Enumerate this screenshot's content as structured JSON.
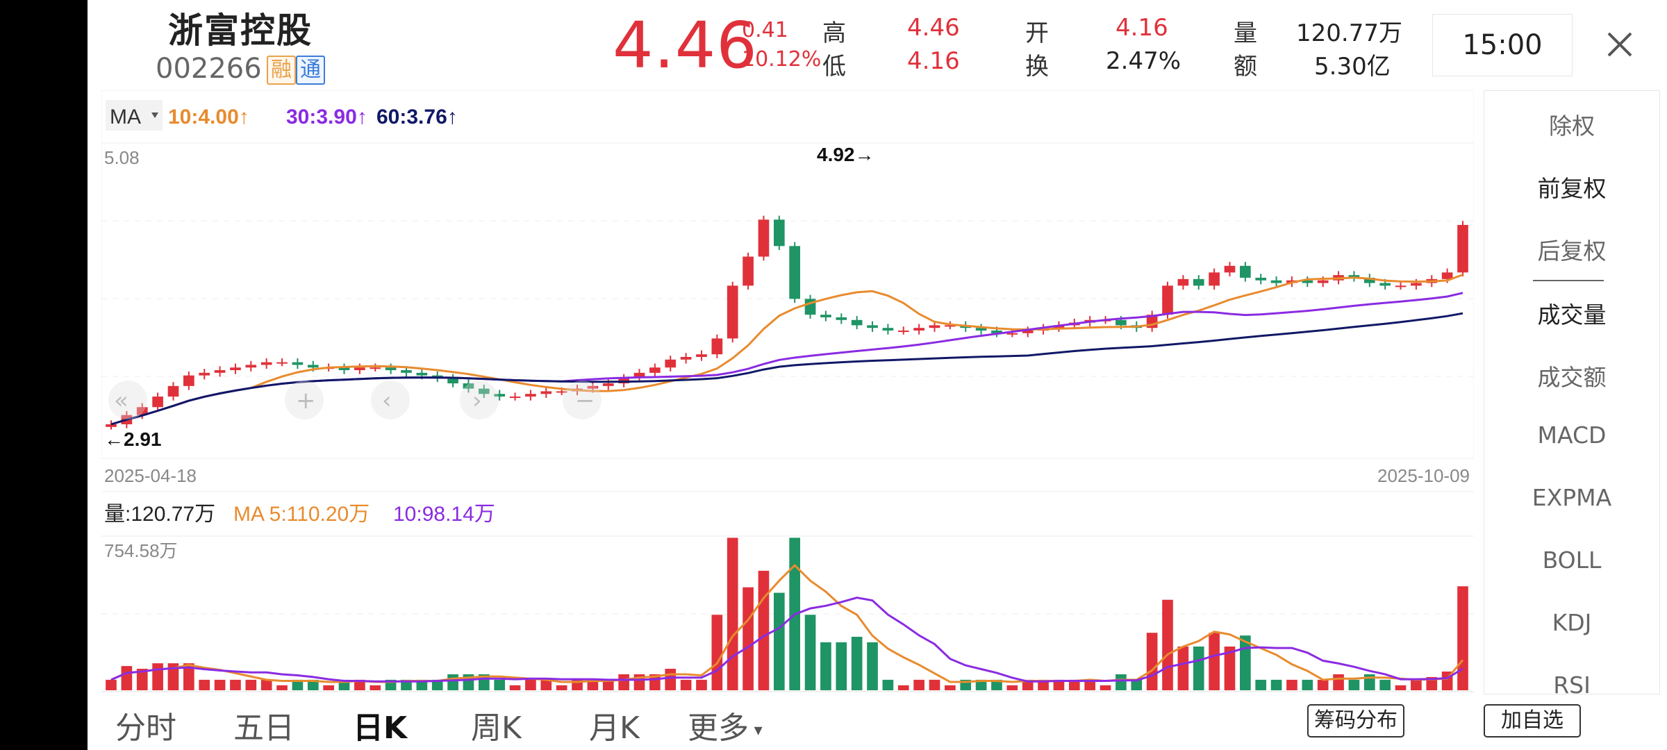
{
  "header": {
    "stock_name": "浙富控股",
    "stock_code": "002266",
    "badge_rong": "融",
    "badge_tong": "通",
    "price": "4.46",
    "change": "0.41",
    "change_pct": "10.12%",
    "quote": {
      "high_label": "高",
      "high": "4.46",
      "low_label": "低",
      "low": "4.16",
      "open_label": "开",
      "open": "4.16",
      "turnover_label": "换",
      "turnover": "2.47%",
      "volume_label": "量",
      "volume": "120.77万",
      "amount_label": "额",
      "amount": "5.30亿"
    },
    "time": "15:00",
    "close_icon": "close-icon"
  },
  "price_chart": {
    "indicator": "MA",
    "ma10": "10:4.00↑",
    "ma30": "30:3.90↑",
    "ma60": "60:3.76↑",
    "y_top_label": "5.08",
    "high_marker": "4.92→",
    "low_marker": "←2.91",
    "start_date": "2025-04-18",
    "end_date": "2025-10-09"
  },
  "volume_chart": {
    "vol_label": "量:120.77万",
    "ma5": "MA 5:110.20万",
    "ma10": "10:98.14万",
    "y_top_label": "754.58万"
  },
  "side_menu": [
    "除权",
    "前复权",
    "后复权",
    "成交量",
    "成交额",
    "MACD",
    "EXPMA",
    "BOLL",
    "KDJ",
    "RSI"
  ],
  "tabs": [
    "分时",
    "五日",
    "日K",
    "周K",
    "月K",
    "更多"
  ],
  "active_tab": "日K",
  "buttons": {
    "chip": "筹码分布",
    "add_watch": "加自选"
  },
  "colors": {
    "up": "#e0313a",
    "down": "#1f9464",
    "ma10": "#e88b2e",
    "ma30": "#8a2be2",
    "ma60": "#101866"
  },
  "chart_data": {
    "type": "candlestick",
    "x_range": [
      "2025-04-18",
      "2025-10-09"
    ],
    "price_axis_top": 5.08,
    "period_high": 4.92,
    "period_low": 2.91,
    "last_close": 4.46,
    "approx_closes": [
      2.95,
      3.02,
      3.08,
      3.16,
      3.24,
      3.32,
      3.34,
      3.36,
      3.38,
      3.4,
      3.42,
      3.42,
      3.4,
      3.38,
      3.38,
      3.36,
      3.38,
      3.38,
      3.36,
      3.34,
      3.32,
      3.3,
      3.26,
      3.22,
      3.18,
      3.16,
      3.16,
      3.18,
      3.2,
      3.2,
      3.22,
      3.24,
      3.26,
      3.3,
      3.34,
      3.38,
      3.44,
      3.46,
      3.48,
      3.6,
      4.0,
      4.22,
      4.5,
      4.3,
      3.9,
      3.78,
      3.76,
      3.74,
      3.7,
      3.68,
      3.66,
      3.66,
      3.68,
      3.7,
      3.7,
      3.68,
      3.66,
      3.64,
      3.64,
      3.66,
      3.68,
      3.7,
      3.72,
      3.74,
      3.74,
      3.7,
      3.68,
      3.78,
      4.0,
      4.05,
      4.0,
      4.1,
      4.15,
      4.06,
      4.04,
      4.02,
      4.04,
      4.02,
      4.04,
      4.08,
      4.06,
      4.02,
      4.0,
      4.0,
      4.02,
      4.05,
      4.1,
      4.46
    ]
  }
}
